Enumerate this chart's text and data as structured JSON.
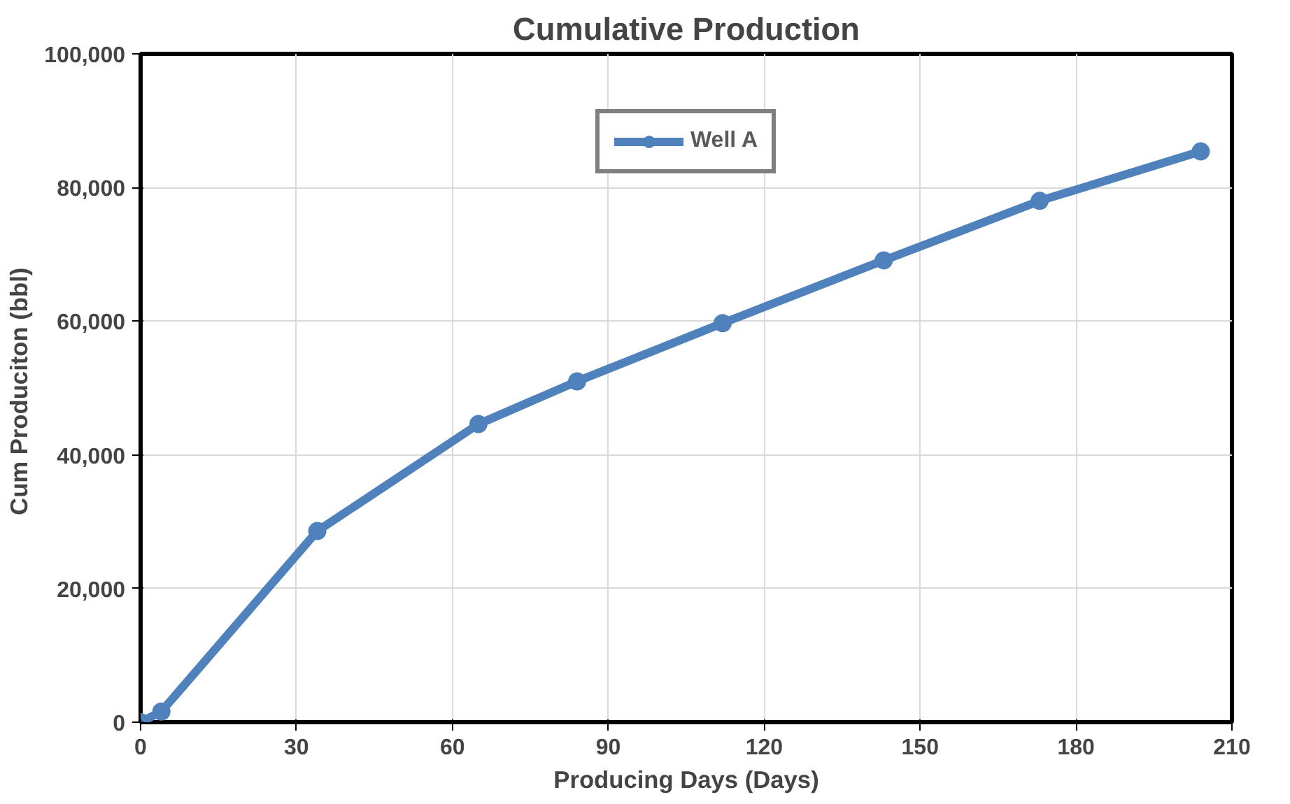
{
  "chart_data": {
    "type": "line",
    "title": "Cumulative Production",
    "xlabel": "Producing Days (Days)",
    "ylabel": "Cum Produciton  (bbl)",
    "x": [
      0,
      4,
      34,
      65,
      84,
      112,
      143,
      173,
      204
    ],
    "series": [
      {
        "name": "Well A",
        "color": "#4f81bd",
        "values": [
          0,
          1600,
          28600,
          44600,
          51000,
          59700,
          69100,
          78000,
          85400
        ]
      }
    ],
    "xlim": [
      0,
      210
    ],
    "xticks": [
      0,
      30,
      60,
      90,
      120,
      150,
      180,
      210
    ],
    "ylim": [
      0,
      100000
    ],
    "yticks": [
      0,
      {
        "value": 20000,
        "label": "20,000"
      },
      {
        "value": 40000,
        "label": "40,000"
      },
      {
        "value": 60000,
        "label": "60,000"
      },
      {
        "value": 80000,
        "label": "80,000"
      },
      {
        "value": 100000,
        "label": "100,000"
      }
    ],
    "grid": true,
    "legend": "top",
    "marker": "circle",
    "line_style": "solid"
  }
}
